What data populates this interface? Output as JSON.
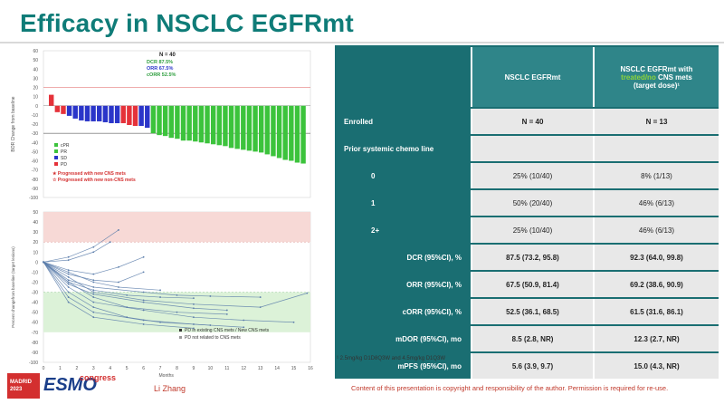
{
  "slide": {
    "title": "Efficacy in NSCLC EGFRmt",
    "author": "Li Zhang",
    "copyright": "Content of this presentation is copyright and responsibility of the author. Permission is required for re-use.",
    "footnote": "¹ 2.5mg/kg D1D8Q3W and 4.5mg/kg D1Q3W",
    "logo": {
      "box_line1": "MADRID",
      "box_line2": "2023",
      "brand": "ESMO",
      "suffix": "congress"
    }
  },
  "waterfall": {
    "n_label": "N = 40",
    "stats": [
      {
        "text": "DCR 87.5%",
        "color": "#2e9e3e"
      },
      {
        "text": "ORR 67.5%",
        "color": "#2a35c9"
      },
      {
        "text": "cORR 52.5%",
        "color": "#2e9e3e"
      }
    ],
    "legend": [
      {
        "label": "cPR",
        "color": "#3cc33c"
      },
      {
        "label": "PR",
        "color": "#3cc33c"
      },
      {
        "label": "SD",
        "color": "#2a35c9"
      },
      {
        "label": "PD",
        "color": "#e5323a"
      }
    ],
    "notes": [
      "★ Progressed with new CNS mets",
      "☆ Progressed with new non-CNS mets"
    ],
    "ylabel": "BOR Change from baseline"
  },
  "chart_data": [
    {
      "type": "bar",
      "title": "",
      "ylabel": "BOR Change from baseline",
      "ylim": [
        -100,
        60
      ],
      "yticks": [
        60,
        50,
        40,
        30,
        20,
        10,
        0,
        -10,
        -20,
        -30,
        -40,
        -50,
        -60,
        -70,
        -80,
        -90,
        -100
      ],
      "reference_lines": [
        20,
        -30
      ],
      "series": [
        {
          "name": "PD",
          "values": [
            12,
            -7,
            -9
          ]
        },
        {
          "name": "SD",
          "values": [
            -11,
            -14,
            -16,
            -17,
            -17,
            -17,
            -18,
            -19,
            -19
          ]
        },
        {
          "name": "PD",
          "values": [
            -19,
            -21,
            -22
          ]
        },
        {
          "name": "SD",
          "values": [
            -22,
            -24
          ]
        },
        {
          "name": "cPR",
          "values": [
            -30,
            -32,
            -33,
            -35,
            -36,
            -38,
            -38,
            -39,
            -40,
            -41,
            -42,
            -43,
            -44,
            -46,
            -47,
            -48,
            -49,
            -50,
            -51,
            -53,
            -55,
            -57,
            -59,
            -60,
            -62,
            -63
          ]
        }
      ]
    },
    {
      "type": "line",
      "title": "",
      "xlabel": "Months",
      "ylabel": "Percent changefrom baseline (target lesions)",
      "xlim": [
        0,
        16
      ],
      "ylim": [
        -100,
        50
      ],
      "xticks": [
        0,
        1,
        2,
        3,
        4,
        5,
        6,
        7,
        8,
        9,
        10,
        11,
        12,
        13,
        14,
        15,
        16
      ],
      "yticks": [
        50,
        40,
        30,
        20,
        10,
        0,
        -10,
        -20,
        -30,
        -40,
        -50,
        -60,
        -70,
        -80,
        -90,
        -100
      ],
      "reference_lines": [
        20,
        -30
      ],
      "legend": [
        "PD in existing CNS mets / New CNS mets",
        "PD not related to CNS mets"
      ],
      "series": [
        {
          "values": [
            [
              0,
              0
            ],
            [
              1.5,
              -20
            ],
            [
              3,
              -35
            ],
            [
              5,
              -45
            ],
            [
              8,
              -50
            ],
            [
              11,
              -52
            ]
          ]
        },
        {
          "values": [
            [
              0,
              0
            ],
            [
              1.5,
              -25
            ],
            [
              3,
              -40
            ],
            [
              6,
              -48
            ],
            [
              9,
              -55
            ],
            [
              12,
              -58
            ],
            [
              15,
              -60
            ]
          ]
        },
        {
          "values": [
            [
              0,
              0
            ],
            [
              1.5,
              -10
            ],
            [
              3,
              -20
            ],
            [
              4.5,
              -25
            ],
            [
              7,
              -28
            ]
          ]
        },
        {
          "values": [
            [
              0,
              0
            ],
            [
              1.5,
              5
            ],
            [
              3,
              15
            ],
            [
              4.5,
              32
            ]
          ]
        },
        {
          "values": [
            [
              0,
              0
            ],
            [
              1.5,
              -30
            ],
            [
              3,
              -45
            ],
            [
              5,
              -55
            ],
            [
              7,
              -60
            ],
            [
              10,
              -63
            ]
          ]
        },
        {
          "values": [
            [
              0,
              0
            ],
            [
              1.5,
              -15
            ],
            [
              3,
              -30
            ],
            [
              6,
              -38
            ],
            [
              9,
              -42
            ],
            [
              13,
              -45
            ],
            [
              15.8,
              -31
            ]
          ]
        },
        {
          "values": [
            [
              0,
              0
            ],
            [
              1.5,
              -8
            ],
            [
              3,
              -12
            ],
            [
              4.5,
              -5
            ],
            [
              6,
              5
            ]
          ]
        },
        {
          "values": [
            [
              0,
              0
            ],
            [
              1.5,
              -35
            ],
            [
              3,
              -50
            ],
            [
              6,
              -58
            ],
            [
              9,
              -62
            ],
            [
              12,
              -65
            ]
          ]
        },
        {
          "values": [
            [
              0,
              0
            ],
            [
              1.5,
              -20
            ],
            [
              3,
              -28
            ],
            [
              5,
              -33
            ],
            [
              7,
              -35
            ],
            [
              9,
              -36
            ]
          ]
        },
        {
          "values": [
            [
              0,
              0
            ],
            [
              1.5,
              -12
            ],
            [
              3,
              -18
            ],
            [
              4.5,
              -20
            ],
            [
              6,
              -10
            ]
          ]
        },
        {
          "values": [
            [
              0,
              0
            ],
            [
              1.5,
              -40
            ],
            [
              3,
              -55
            ],
            [
              6,
              -62
            ],
            [
              9,
              -66
            ]
          ]
        },
        {
          "values": [
            [
              0,
              0
            ],
            [
              1.5,
              -22
            ],
            [
              3,
              -32
            ],
            [
              6,
              -40
            ],
            [
              9,
              -46
            ],
            [
              11,
              -48
            ]
          ]
        },
        {
          "values": [
            [
              0,
              0
            ],
            [
              1.5,
              -18
            ],
            [
              3,
              -25
            ],
            [
              6,
              -30
            ],
            [
              8,
              -33
            ],
            [
              10,
              -34
            ],
            [
              13,
              -35
            ]
          ]
        },
        {
          "values": [
            [
              0,
              0
            ],
            [
              1.5,
              2
            ],
            [
              3,
              10
            ],
            [
              4,
              20
            ]
          ]
        }
      ]
    }
  ],
  "table": {
    "headers": {
      "col1": "",
      "col2": "NSCLC EGFRmt",
      "col3_line1": "NSCLC EGFRmt with",
      "col3_green": "treated/no",
      "col3_line2": " CNS mets",
      "col3_line3": "(target dose)¹"
    },
    "rows": [
      {
        "label": "Enrolled",
        "v1": "N = 40",
        "v2": "N = 13",
        "bold": true,
        "align": "left"
      },
      {
        "label": "Prior systemic chemo line",
        "v1": "",
        "v2": "",
        "bold": false,
        "align": "left"
      },
      {
        "label": "0",
        "v1": "25% (10/40)",
        "v2": "8% (1/13)",
        "bold": false,
        "align": "indent"
      },
      {
        "label": "1",
        "v1": "50% (20/40)",
        "v2": "46% (6/13)",
        "bold": false,
        "align": "indent"
      },
      {
        "label": "2+",
        "v1": "25% (10/40)",
        "v2": "46% (6/13)",
        "bold": false,
        "align": "indent"
      },
      {
        "label": "DCR (95%CI), %",
        "v1": "87.5 (73.2, 95.8)",
        "v2": "92.3 (64.0, 99.8)",
        "bold": true,
        "align": "right"
      },
      {
        "label": "ORR (95%CI), %",
        "v1": "67.5 (50.9, 81.4)",
        "v2": "69.2 (38.6, 90.9)",
        "bold": true,
        "align": "right"
      },
      {
        "label": "cORR (95%CI), %",
        "v1": "52.5 (36.1, 68.5)",
        "v2": "61.5 (31.6, 86.1)",
        "bold": true,
        "align": "right"
      },
      {
        "label": "mDOR (95%CI), mo",
        "v1": "8.5 (2.8, NR)",
        "v2": "12.3 (2.7, NR)",
        "bold": true,
        "align": "right"
      },
      {
        "label": "mPFS (95%CI), mo",
        "v1": "5.6 (3.9, 9.7)",
        "v2": "15.0 (4.3, NR)",
        "bold": true,
        "align": "right"
      }
    ]
  }
}
